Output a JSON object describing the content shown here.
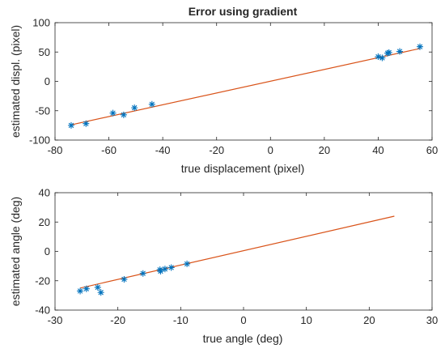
{
  "chart_data": [
    {
      "type": "scatter",
      "title": "Error using gradient",
      "xlabel": "true displacement (pixel)",
      "ylabel": "estimated displ. (pixel)",
      "xlim": [
        -80,
        60
      ],
      "ylim": [
        -100,
        100
      ],
      "xticks": [
        -80,
        -60,
        -40,
        -20,
        0,
        20,
        40,
        60
      ],
      "yticks": [
        -100,
        -50,
        0,
        50,
        100
      ],
      "grid": false,
      "marker": "asterisk",
      "marker_color": "#0072BD",
      "line_color": "#D95319",
      "series": [
        {
          "x": [
            -74,
            -68.5,
            -58.5,
            -54.5,
            -50.5,
            -44,
            40,
            41.5,
            43.5,
            44,
            48,
            55.5
          ],
          "y": [
            -75,
            -72,
            -54,
            -57,
            -45,
            -39,
            42,
            40,
            48,
            49,
            51,
            59
          ]
        }
      ],
      "fit_line": {
        "x": [
          -74,
          55.5
        ],
        "y": [
          -74,
          56
        ]
      }
    },
    {
      "type": "scatter",
      "title": "",
      "xlabel": "true angle (deg)",
      "ylabel": "estimated angle (deg)",
      "xlim": [
        -30,
        30
      ],
      "ylim": [
        -40,
        40
      ],
      "xticks": [
        -30,
        -20,
        -10,
        0,
        10,
        20,
        30
      ],
      "yticks": [
        -40,
        -20,
        0,
        20,
        40
      ],
      "grid": false,
      "marker": "asterisk",
      "marker_color": "#0072BD",
      "line_color": "#D95319",
      "series": [
        {
          "x": [
            -26,
            -25,
            -23.2,
            -22.7,
            -19,
            -16,
            -13.3,
            -13.2,
            -12.5,
            -11.5,
            -9
          ],
          "y": [
            -27,
            -25.5,
            -24.5,
            -28,
            -19,
            -15,
            -12.5,
            -13.5,
            -12,
            -11,
            -8.5
          ]
        }
      ],
      "fit_line": {
        "x": [
          -26,
          24
        ],
        "y": [
          -25,
          24
        ]
      }
    }
  ]
}
